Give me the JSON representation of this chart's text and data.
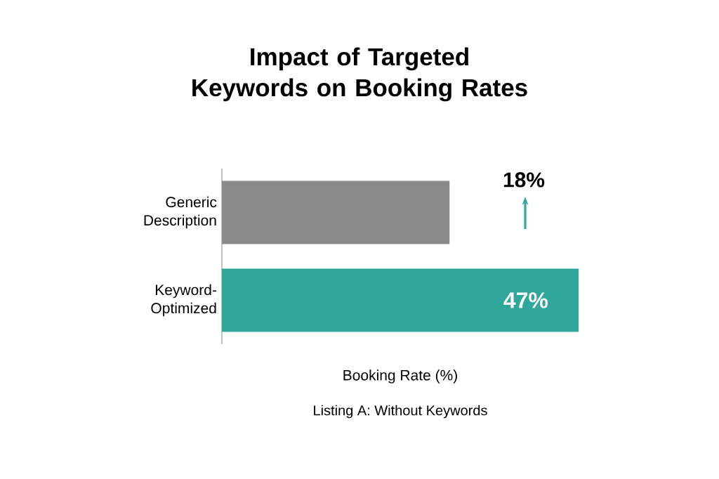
{
  "chart_data": {
    "type": "bar",
    "orientation": "horizontal",
    "title": "Impact of Targeted Keywords on Booking Rates",
    "categories": [
      "Generic Description",
      "Keyword-Optimized"
    ],
    "values": [
      30,
      47
    ],
    "colors": [
      "#8a8a8a",
      "#2fa79b"
    ],
    "value_labels": [
      null,
      "47%"
    ],
    "xlabel": "Booking Rate (%)",
    "annotations": [
      "18%",
      "Listing A: Without Keywords"
    ]
  }
}
